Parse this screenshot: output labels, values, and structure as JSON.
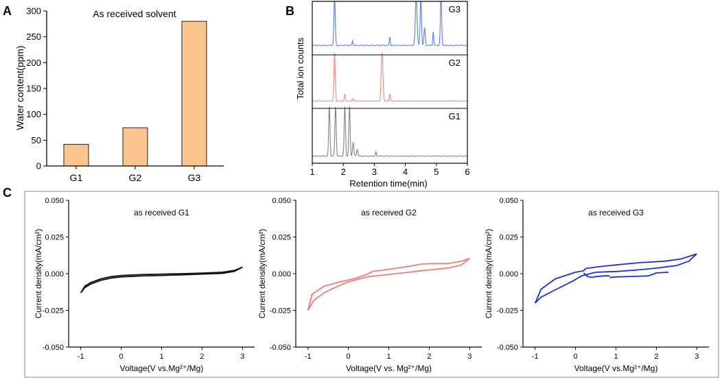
{
  "panel_labels": [
    "A",
    "B",
    "C"
  ],
  "colors": {
    "bar_fill": "#f9c48e",
    "bar_stroke": "#222222",
    "g1_chrom": "#808080",
    "g2_chrom": "#f08a80",
    "g3_chrom": "#5a7fe0",
    "cv_g1": "#111111",
    "cv_g2": "#f07b7b",
    "cv_g3": "#1a2fd6",
    "frame_c": "#9a9a9a"
  },
  "chart_data": [
    {
      "id": "A",
      "type": "bar",
      "title": "As received solvent",
      "categories": [
        "G1",
        "G2",
        "G3"
      ],
      "values": [
        42,
        74,
        280
      ],
      "xlabel": "",
      "ylabel": "Water content(ppm)",
      "ylim": [
        0,
        300
      ],
      "yticks": [
        0,
        50,
        100,
        150,
        200,
        250,
        300
      ]
    },
    {
      "id": "B",
      "type": "line",
      "title": "",
      "xlabel": "Retention time(min)",
      "ylabel": "Total ion counts",
      "xlim": [
        1,
        6
      ],
      "xticks": [
        1,
        2,
        3,
        4,
        5,
        6
      ],
      "series": [
        {
          "name": "G3",
          "baseline": 0.75,
          "peaks": [
            [
              1.72,
              9.0,
              0.03
            ],
            [
              2.3,
              0.9,
              0.02
            ],
            [
              3.5,
              1.6,
              0.02
            ],
            [
              4.35,
              9.0,
              0.04
            ],
            [
              4.5,
              9.0,
              0.03
            ],
            [
              4.62,
              3.2,
              0.03
            ],
            [
              4.9,
              2.6,
              0.02
            ],
            [
              5.15,
              9.0,
              0.03
            ]
          ]
        },
        {
          "name": "G2",
          "baseline": 0.35,
          "peaks": [
            [
              1.72,
              9.0,
              0.03
            ],
            [
              2.05,
              1.3,
              0.02
            ],
            [
              2.3,
              0.5,
              0.02
            ],
            [
              3.25,
              9.0,
              0.04
            ],
            [
              3.5,
              1.4,
              0.02
            ]
          ]
        },
        {
          "name": "G1",
          "baseline": 0.3,
          "peaks": [
            [
              1.55,
              9.0,
              0.03
            ],
            [
              1.75,
              9.0,
              0.03
            ],
            [
              2.05,
              9.0,
              0.03
            ],
            [
              2.2,
              9.0,
              0.03
            ],
            [
              2.32,
              2.5,
              0.03
            ],
            [
              2.45,
              1.2,
              0.03
            ],
            [
              3.05,
              0.8,
              0.02
            ]
          ]
        }
      ]
    },
    {
      "id": "C1",
      "type": "line",
      "title": "as received G1",
      "xlabel": "Voltage(V vs.Mg²⁺/Mg)",
      "ylabel": "Current density(mA/cm²)",
      "xlim": [
        -1.3,
        3.3
      ],
      "ylim": [
        -0.05,
        0.05
      ],
      "xticks": [
        -1,
        0,
        1,
        2,
        3
      ],
      "yticks": [
        "0.050",
        "0.025",
        "0.000",
        "-0.025",
        "-0.050"
      ],
      "series": [
        {
          "name": "forward",
          "x": [
            -1.0,
            -0.9,
            -0.75,
            -0.5,
            -0.25,
            0,
            0.5,
            1.0,
            1.5,
            2.0,
            2.5,
            2.8,
            3.0
          ],
          "y": [
            -0.013,
            -0.0085,
            -0.006,
            -0.0035,
            -0.002,
            -0.0012,
            -0.0006,
            -0.0003,
            0.0,
            0.0004,
            0.001,
            0.0022,
            0.0045
          ]
        },
        {
          "name": "reverse",
          "x": [
            3.0,
            2.8,
            2.5,
            2.0,
            1.5,
            1.0,
            0.5,
            0,
            -0.25,
            -0.5,
            -0.75,
            -0.9,
            -1.0
          ],
          "y": [
            0.0045,
            0.0016,
            0.0002,
            -0.0003,
            -0.0008,
            -0.0012,
            -0.0016,
            -0.0022,
            -0.003,
            -0.0045,
            -0.007,
            -0.0095,
            -0.013
          ]
        }
      ]
    },
    {
      "id": "C2",
      "type": "line",
      "title": "as received G2",
      "xlabel": "Voltage(V vs. Mg²⁺/Mg)",
      "ylabel": "Current density(mA/cm²)",
      "xlim": [
        -1.3,
        3.3
      ],
      "ylim": [
        -0.05,
        0.05
      ],
      "xticks": [
        -1,
        0,
        1,
        2,
        3
      ],
      "yticks": [
        "0.050",
        "0.025",
        "0.000",
        "-0.025",
        "-0.050"
      ],
      "series": [
        {
          "name": "forward",
          "x": [
            -1.0,
            -0.85,
            -0.6,
            -0.3,
            0,
            0.5,
            1.0,
            1.5,
            1.8,
            2.0,
            2.5,
            2.8,
            3.0
          ],
          "y": [
            -0.025,
            -0.018,
            -0.013,
            -0.009,
            -0.0055,
            -0.002,
            -0.0005,
            0.001,
            0.002,
            0.0025,
            0.004,
            0.006,
            0.0105
          ]
        },
        {
          "name": "reverse",
          "x": [
            3.0,
            2.8,
            2.5,
            2.0,
            1.8,
            1.5,
            1.0,
            0.6,
            0.45,
            0.2,
            -0.2,
            -0.6,
            -0.9,
            -1.0
          ],
          "y": [
            0.0105,
            0.0085,
            0.007,
            0.0068,
            0.0065,
            0.005,
            0.003,
            0.0015,
            -0.0005,
            -0.003,
            -0.0055,
            -0.0085,
            -0.014,
            -0.025
          ]
        }
      ]
    },
    {
      "id": "C3",
      "type": "line",
      "title": "as received G3",
      "xlabel": "Voltage(V vs.Mg²⁺/Mg)",
      "ylabel": "Current density(mA/cm²)",
      "xlim": [
        -1.3,
        3.3
      ],
      "ylim": [
        -0.05,
        0.05
      ],
      "xticks": [
        -1,
        0,
        1,
        2,
        3
      ],
      "yticks": [
        "0.050",
        "0.025",
        "0.000",
        "-0.025",
        "-0.050"
      ],
      "series": [
        {
          "name": "forward",
          "x": [
            -1.0,
            -0.85,
            -0.5,
            -0.1,
            0.15,
            0.5,
            1.0,
            1.5,
            1.9,
            2.0,
            2.5,
            2.8,
            3.0
          ],
          "y": [
            -0.02,
            -0.016,
            -0.011,
            -0.0055,
            -0.0015,
            0.001,
            0.0015,
            0.0025,
            0.0035,
            0.0038,
            0.0055,
            0.0085,
            0.0135
          ]
        },
        {
          "name": "reverse",
          "x": [
            3.0,
            2.6,
            2.2,
            1.9,
            1.6,
            1.0,
            0.5,
            0.25,
            0.2,
            0.0,
            -0.5,
            -0.85,
            -1.0
          ],
          "y": [
            0.0135,
            0.01,
            0.0085,
            0.008,
            0.0075,
            0.006,
            0.0045,
            0.0035,
            0.002,
            0.001,
            -0.0035,
            -0.0105,
            -0.02
          ]
        },
        {
          "name": "step",
          "x": [
            0.85,
            0.7,
            0.5,
            0.4,
            0.3,
            0.2
          ],
          "y": [
            -0.0015,
            -0.0015,
            -0.002,
            -0.0025,
            -0.002,
            0.0005
          ]
        },
        {
          "name": "tail",
          "x": [
            0.85,
            0.88,
            1.0,
            1.5,
            1.8,
            1.9,
            2.0,
            2.3
          ],
          "y": [
            -0.003,
            -0.0025,
            -0.0022,
            -0.0018,
            -0.0015,
            -0.0005,
            0.0005,
            0.001
          ]
        }
      ]
    }
  ]
}
